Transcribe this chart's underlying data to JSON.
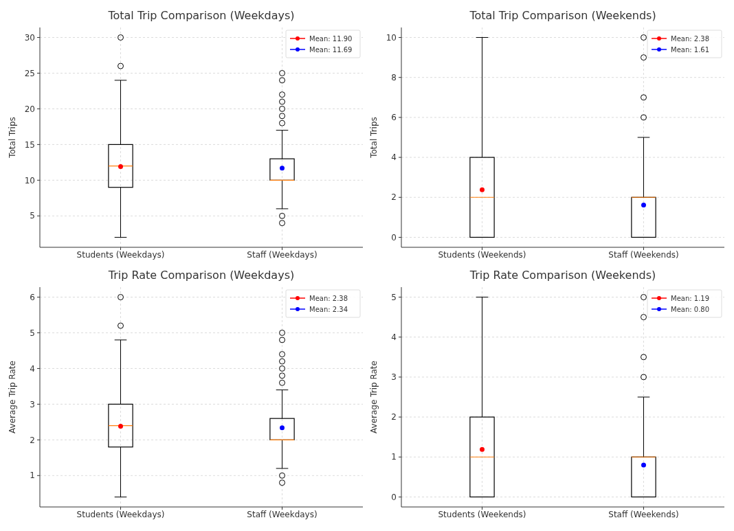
{
  "chart_data": [
    {
      "type": "box",
      "title": "Total Trip Comparison (Weekdays)",
      "ylabel": "Total Trips",
      "categories": [
        "Students (Weekdays)",
        "Staff (Weekdays)"
      ],
      "ylim": [
        0.6,
        31.4
      ],
      "yticks": [
        5,
        10,
        15,
        20,
        25,
        30
      ],
      "grid": true,
      "legend": "top right",
      "series": [
        {
          "type": "box",
          "color": "#000000",
          "boxes": [
            {
              "low": 2,
              "q1": 9,
              "median": 12,
              "q3": 15,
              "high": 24,
              "outliers": [
                26,
                30
              ]
            },
            {
              "low": 6,
              "q1": 10,
              "median": 10,
              "q3": 13,
              "high": 17,
              "outliers": [
                18,
                19,
                20,
                21,
                22,
                24,
                25,
                5,
                4
              ]
            }
          ]
        },
        {
          "type": "scatter",
          "name": "Mean: 11.90",
          "color": "#ff0000",
          "x": [
            "Students (Weekdays)"
          ],
          "values": [
            11.9
          ]
        },
        {
          "type": "scatter",
          "name": "Mean: 11.69",
          "color": "#0000ff",
          "x": [
            "Staff (Weekdays)"
          ],
          "values": [
            11.69
          ]
        }
      ]
    },
    {
      "type": "box",
      "title": "Total Trip Comparison (Weekends)",
      "ylabel": "Total Trips",
      "categories": [
        "Students (Weekends)",
        "Staff (Weekends)"
      ],
      "ylim": [
        -0.5,
        10.5
      ],
      "yticks": [
        0,
        2,
        4,
        6,
        8,
        10
      ],
      "grid": true,
      "legend": "top right",
      "series": [
        {
          "type": "box",
          "color": "#000000",
          "boxes": [
            {
              "low": 0,
              "q1": 0,
              "median": 2,
              "q3": 4,
              "high": 10
            },
            {
              "low": 0,
              "q1": 0,
              "median": 2,
              "q3": 2,
              "high": 5,
              "outliers": [
                6,
                7,
                9,
                10
              ]
            }
          ]
        },
        {
          "type": "scatter",
          "name": "Mean: 2.38",
          "color": "#ff0000",
          "x": [
            "Students (Weekends)"
          ],
          "values": [
            2.38
          ]
        },
        {
          "type": "scatter",
          "name": "Mean: 1.61",
          "color": "#0000ff",
          "x": [
            "Staff (Weekends)"
          ],
          "values": [
            1.61
          ]
        }
      ]
    },
    {
      "type": "box",
      "title": "Trip Rate Comparison (Weekdays)",
      "ylabel": "Average Trip Rate",
      "categories": [
        "Students (Weekdays)",
        "Staff (Weekdays)"
      ],
      "ylim": [
        0.12,
        6.28
      ],
      "yticks": [
        1,
        2,
        3,
        4,
        5,
        6
      ],
      "grid": true,
      "legend": "top right",
      "series": [
        {
          "type": "box",
          "color": "#000000",
          "boxes": [
            {
              "low": 0.4,
              "q1": 1.8,
              "median": 2.4,
              "q3": 3,
              "high": 4.8,
              "outliers": [
                5.2,
                6
              ]
            },
            {
              "low": 1.2,
              "q1": 2,
              "median": 2,
              "q3": 2.6,
              "high": 3.4,
              "outliers": [
                3.6,
                3.8,
                4,
                4.2,
                4.4,
                4.8,
                5,
                1,
                0.8
              ]
            }
          ]
        },
        {
          "type": "scatter",
          "name": "Mean: 2.38",
          "color": "#ff0000",
          "x": [
            "Students (Weekdays)"
          ],
          "values": [
            2.38
          ]
        },
        {
          "type": "scatter",
          "name": "Mean: 2.34",
          "color": "#0000ff",
          "x": [
            "Staff (Weekdays)"
          ],
          "values": [
            2.34
          ]
        }
      ]
    },
    {
      "type": "box",
      "title": "Trip Rate Comparison (Weekends)",
      "ylabel": "Average Trip Rate",
      "categories": [
        "Students (Weekends)",
        "Staff (Weekends)"
      ],
      "ylim": [
        -0.25,
        5.25
      ],
      "yticks": [
        0,
        1,
        2,
        3,
        4,
        5
      ],
      "grid": true,
      "legend": "top right",
      "series": [
        {
          "type": "box",
          "color": "#000000",
          "boxes": [
            {
              "low": 0,
              "q1": 0,
              "median": 1,
              "q3": 2,
              "high": 5
            },
            {
              "low": 0,
              "q1": 0,
              "median": 1,
              "q3": 1,
              "high": 2.5,
              "outliers": [
                3,
                3.5,
                4.5,
                5
              ]
            }
          ]
        },
        {
          "type": "scatter",
          "name": "Mean: 1.19",
          "color": "#ff0000",
          "x": [
            "Students (Weekends)"
          ],
          "values": [
            1.19
          ]
        },
        {
          "type": "scatter",
          "name": "Mean: 0.80",
          "color": "#0000ff",
          "x": [
            "Staff (Weekends)"
          ],
          "values": [
            0.8
          ]
        }
      ]
    }
  ]
}
